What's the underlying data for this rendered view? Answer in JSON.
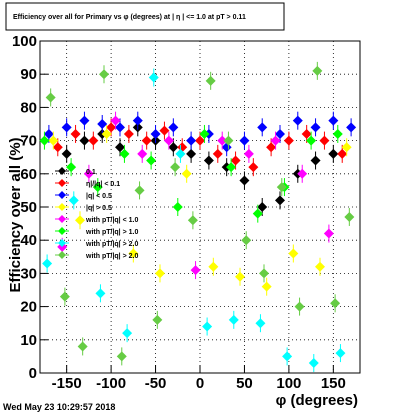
{
  "chart_data": {
    "type": "scatter",
    "title": "Efficiency over all for Primary vs φ (degrees) at |  η | <= 1.0 at pT > 0.11",
    "xlabel": "φ (degrees)",
    "ylabel": "Efficiency over all (%)",
    "xlim": [
      -180,
      180
    ],
    "ylim": [
      0,
      100
    ],
    "x_ticks": [
      -150,
      -100,
      -50,
      0,
      50,
      100,
      150
    ],
    "y_ticks": [
      0,
      10,
      20,
      30,
      40,
      50,
      60,
      70,
      80,
      90,
      100
    ],
    "grid": true,
    "legend_placement": "middle-left",
    "timestamp": "Wed May 23 10:29:57 2018",
    "series": [
      {
        "name": "0.1",
        "color": "#000000",
        "x": [
          -150,
          -130,
          -110,
          -90,
          -70,
          -50,
          -30,
          -10,
          10,
          30,
          50,
          70,
          90,
          110,
          130,
          150
        ],
        "y": [
          66,
          70,
          72,
          68,
          74,
          70,
          68,
          66,
          64,
          62,
          58,
          50,
          52,
          60,
          64,
          66
        ]
      },
      {
        "name": "η|/|q| < 0.1",
        "color": "#ff0000",
        "x": [
          -160,
          -140,
          -120,
          -100,
          -80,
          -60,
          -40,
          -20,
          0,
          20,
          40,
          60,
          80,
          100,
          120,
          140,
          160
        ],
        "y": [
          68,
          72,
          70,
          74,
          72,
          70,
          73,
          68,
          70,
          66,
          64,
          62,
          68,
          70,
          72,
          70,
          66
        ]
      },
      {
        "name": "|q| < 0.5",
        "color": "#0000ff",
        "x": [
          -170,
          -150,
          -130,
          -110,
          -90,
          -70,
          -50,
          -30,
          -10,
          10,
          30,
          50,
          70,
          90,
          110,
          130,
          150,
          170
        ],
        "y": [
          72,
          74,
          76,
          75,
          74,
          76,
          72,
          74,
          70,
          72,
          68,
          70,
          74,
          72,
          76,
          74,
          76,
          74
        ]
      },
      {
        "name": "|q| > 0.5",
        "color": "#ffff00",
        "x": [
          -165,
          -135,
          -105,
          -75,
          -45,
          -15,
          15,
          45,
          75,
          105,
          135,
          165
        ],
        "y": [
          70,
          46,
          72,
          36,
          30,
          60,
          32,
          29,
          26,
          36,
          32,
          68
        ]
      },
      {
        "name": "with pT/|q| < 1.0",
        "color": "#ff00ff",
        "x": [
          -155,
          -125,
          -95,
          -65,
          -35,
          -5,
          25,
          55,
          85,
          115,
          145
        ],
        "y": [
          38,
          60,
          76,
          66,
          70,
          31,
          70,
          66,
          70,
          60,
          42
        ]
      },
      {
        "name": "with pT/|q| > 1.0",
        "color": "#00ff00",
        "x": [
          -175,
          -145,
          -115,
          -85,
          -55,
          -25,
          5,
          35,
          65,
          95,
          125,
          155
        ],
        "y": [
          70,
          62,
          56,
          66,
          64,
          50,
          72,
          62,
          48,
          56,
          70,
          72
        ]
      },
      {
        "name": "with pT/|q| > 2.0",
        "color": "#00ffff",
        "x": [
          -172,
          -142,
          -112,
          -82,
          -52,
          -22,
          8,
          38,
          68,
          98,
          128,
          158
        ],
        "y": [
          33,
          52,
          24,
          12,
          89,
          66,
          14,
          16,
          15,
          5,
          3,
          6
        ]
      },
      {
        "name": "with pT/|q| > 2.0",
        "color": "#66cc44",
        "x": [
          -168,
          -152,
          -132,
          -108,
          -88,
          -68,
          -48,
          -28,
          -8,
          12,
          32,
          52,
          72,
          92,
          112,
          132,
          152,
          168
        ],
        "y": [
          83,
          23,
          8,
          90,
          5,
          55,
          16,
          62,
          46,
          88,
          70,
          40,
          30,
          56,
          20,
          91,
          21,
          47
        ]
      }
    ]
  }
}
